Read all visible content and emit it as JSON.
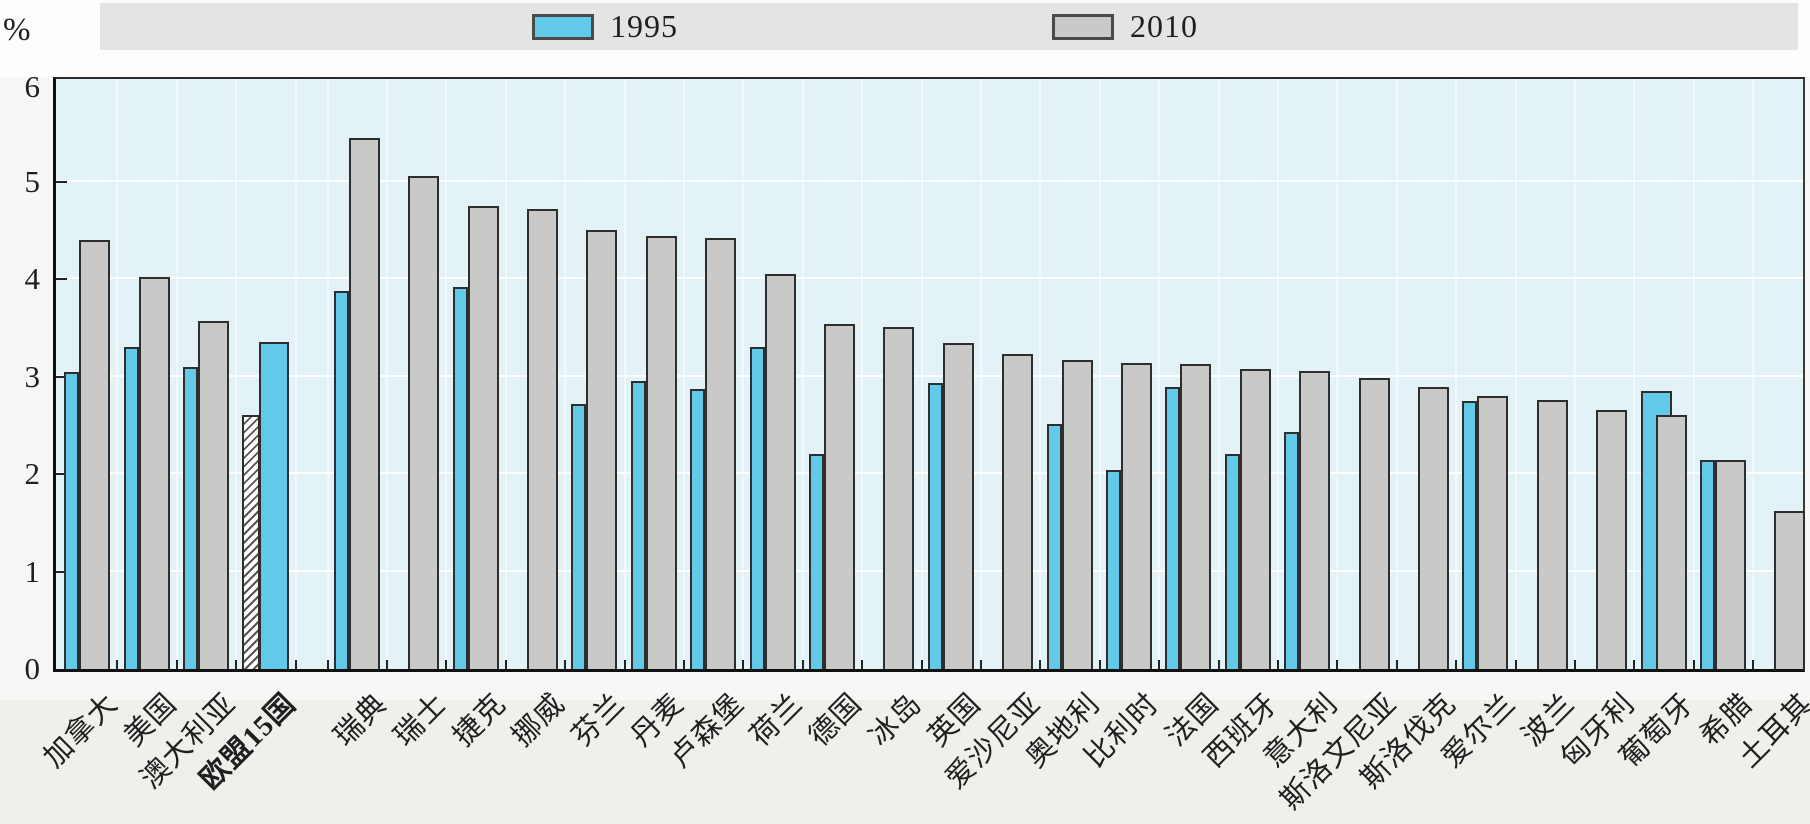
{
  "unit_label": "%",
  "legend": {
    "items": [
      {
        "label": "1995",
        "color": "#63c9e9"
      },
      {
        "label": "2010",
        "color": "#c9c9c7"
      }
    ]
  },
  "colors": {
    "bar_1995": "#63c9e9",
    "bar_2010": "#c9c9c7",
    "bar_border": "#2e2e2e",
    "plot_background": "#e3f2f6",
    "gridline": "#ffffff",
    "legend_band": "#e4e4e2",
    "axis": "#111111",
    "text": "#1f1f1f"
  },
  "chart_data": {
    "type": "bar",
    "title": "",
    "ylabel": "%",
    "xlabel": "",
    "ylim": [
      0,
      6
    ],
    "yticks": [
      "0",
      "1",
      "2",
      "3",
      "4",
      "5",
      "6"
    ],
    "grid": true,
    "legend_position": "top",
    "categories": [
      "加拿大",
      "美国",
      "澳大利亚",
      "欧盟15国",
      "瑞典",
      "瑞士",
      "捷克",
      "挪威",
      "芬兰",
      "丹麦",
      "卢森堡",
      "荷兰",
      "德国",
      "冰岛",
      "英国",
      "爱沙尼亚",
      "奥地利",
      "比利时",
      "法国",
      "西班牙",
      "意大利",
      "斯洛文尼亚",
      "斯洛伐克",
      "爱尔兰",
      "波兰",
      "匈牙利",
      "葡萄牙",
      "希腊",
      "土耳其"
    ],
    "series": [
      {
        "name": "1995",
        "values": [
          3.05,
          3.3,
          3.1,
          2.6,
          3.88,
          null,
          3.92,
          null,
          2.72,
          2.95,
          2.87,
          3.3,
          2.2,
          null,
          2.93,
          null,
          2.51,
          2.04,
          2.89,
          2.2,
          2.43,
          null,
          null,
          2.75,
          null,
          null,
          2.85,
          2.14,
          null
        ]
      },
      {
        "name": "2010",
        "values": [
          4.4,
          4.02,
          3.57,
          3.35,
          5.45,
          5.06,
          4.75,
          4.72,
          4.5,
          4.44,
          4.42,
          4.05,
          3.54,
          3.51,
          3.34,
          3.23,
          3.17,
          3.14,
          3.13,
          3.08,
          3.06,
          2.98,
          2.89,
          2.8,
          2.76,
          2.66,
          2.6,
          2.14,
          1.62
        ]
      }
    ],
    "gap_after_category": "欧盟15国",
    "bold_categories": [
      "欧盟15国"
    ],
    "special_styles": {
      "欧盟15国": {
        "series_1995": "hatched-narrow-bar",
        "series_2010": "wide-blue-bar"
      },
      "葡萄牙": {
        "series_1995": "wide-blue-bar-behind-gray"
      }
    }
  }
}
